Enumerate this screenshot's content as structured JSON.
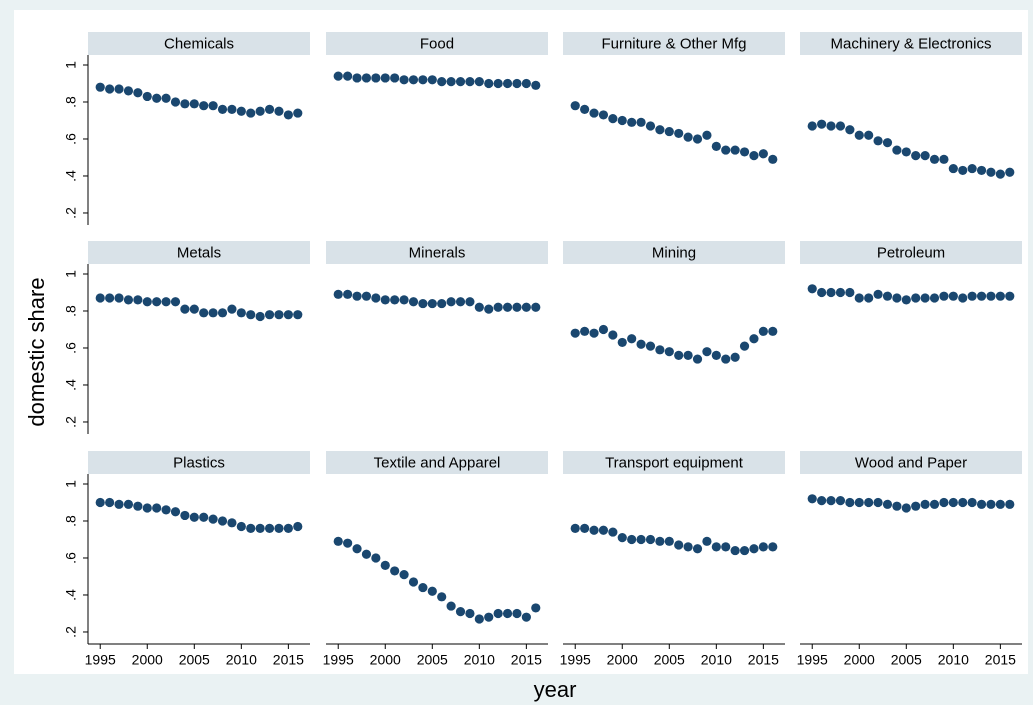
{
  "chart_data": {
    "type": "scatter",
    "x_label": "year",
    "y_label": "domestic share",
    "color": "#1a476f",
    "x": [
      1995,
      1996,
      1997,
      1998,
      1999,
      2000,
      2001,
      2002,
      2003,
      2004,
      2005,
      2006,
      2007,
      2008,
      2009,
      2010,
      2011,
      2012,
      2013,
      2014,
      2015,
      2016
    ],
    "xlim": [
      1993.7,
      2017.3
    ],
    "xticks": [
      1995,
      2000,
      2005,
      2010,
      2015
    ],
    "ylim": [
      0.135,
      1.054
    ],
    "yticks": [
      {
        "value": 0.2,
        "label": ".2"
      },
      {
        "value": 0.4,
        "label": ".4"
      },
      {
        "value": 0.6,
        "label": ".6"
      },
      {
        "value": 0.8,
        "label": ".8"
      },
      1
    ],
    "panels": [
      {
        "title": "Chemicals",
        "values": [
          0.88,
          0.87,
          0.87,
          0.86,
          0.85,
          0.83,
          0.82,
          0.82,
          0.8,
          0.79,
          0.79,
          0.78,
          0.78,
          0.76,
          0.76,
          0.75,
          0.74,
          0.75,
          0.76,
          0.75,
          0.73,
          0.74
        ]
      },
      {
        "title": "Food",
        "values": [
          0.94,
          0.94,
          0.93,
          0.93,
          0.93,
          0.93,
          0.93,
          0.92,
          0.92,
          0.92,
          0.92,
          0.91,
          0.91,
          0.91,
          0.91,
          0.91,
          0.9,
          0.9,
          0.9,
          0.9,
          0.9,
          0.89
        ]
      },
      {
        "title": "Furniture & Other Mfg",
        "values": [
          0.78,
          0.76,
          0.74,
          0.73,
          0.71,
          0.7,
          0.69,
          0.69,
          0.67,
          0.65,
          0.64,
          0.63,
          0.61,
          0.6,
          0.62,
          0.56,
          0.54,
          0.54,
          0.53,
          0.51,
          0.52,
          0.49
        ]
      },
      {
        "title": "Machinery & Electronics",
        "values": [
          0.67,
          0.68,
          0.67,
          0.67,
          0.65,
          0.62,
          0.62,
          0.59,
          0.58,
          0.54,
          0.53,
          0.51,
          0.51,
          0.49,
          0.49,
          0.44,
          0.43,
          0.44,
          0.43,
          0.42,
          0.41,
          0.42
        ]
      },
      {
        "title": "Metals",
        "values": [
          0.87,
          0.87,
          0.87,
          0.86,
          0.86,
          0.85,
          0.85,
          0.85,
          0.85,
          0.81,
          0.81,
          0.79,
          0.79,
          0.79,
          0.81,
          0.79,
          0.78,
          0.77,
          0.78,
          0.78,
          0.78,
          0.78
        ]
      },
      {
        "title": "Minerals",
        "values": [
          0.89,
          0.89,
          0.88,
          0.88,
          0.87,
          0.86,
          0.86,
          0.86,
          0.85,
          0.84,
          0.84,
          0.84,
          0.85,
          0.85,
          0.85,
          0.82,
          0.81,
          0.82,
          0.82,
          0.82,
          0.82,
          0.82
        ]
      },
      {
        "title": "Mining",
        "values": [
          0.68,
          0.69,
          0.68,
          0.7,
          0.67,
          0.63,
          0.65,
          0.62,
          0.61,
          0.59,
          0.58,
          0.56,
          0.56,
          0.54,
          0.58,
          0.56,
          0.54,
          0.55,
          0.61,
          0.65,
          0.69,
          0.69
        ]
      },
      {
        "title": "Petroleum",
        "values": [
          0.92,
          0.9,
          0.9,
          0.9,
          0.9,
          0.87,
          0.87,
          0.89,
          0.88,
          0.87,
          0.86,
          0.87,
          0.87,
          0.87,
          0.88,
          0.88,
          0.87,
          0.88,
          0.88,
          0.88,
          0.88,
          0.88
        ]
      },
      {
        "title": "Plastics",
        "values": [
          0.9,
          0.9,
          0.89,
          0.89,
          0.88,
          0.87,
          0.87,
          0.86,
          0.85,
          0.83,
          0.82,
          0.82,
          0.81,
          0.8,
          0.79,
          0.77,
          0.76,
          0.76,
          0.76,
          0.76,
          0.76,
          0.77
        ]
      },
      {
        "title": "Textile and Apparel",
        "values": [
          0.69,
          0.68,
          0.65,
          0.62,
          0.6,
          0.56,
          0.53,
          0.51,
          0.47,
          0.44,
          0.42,
          0.39,
          0.34,
          0.31,
          0.3,
          0.27,
          0.28,
          0.3,
          0.3,
          0.3,
          0.28,
          0.33
        ]
      },
      {
        "title": "Transport equipment",
        "values": [
          0.76,
          0.76,
          0.75,
          0.75,
          0.74,
          0.71,
          0.7,
          0.7,
          0.7,
          0.69,
          0.69,
          0.67,
          0.66,
          0.65,
          0.69,
          0.66,
          0.66,
          0.64,
          0.64,
          0.65,
          0.66,
          0.66
        ]
      },
      {
        "title": "Wood and Paper",
        "values": [
          0.92,
          0.91,
          0.91,
          0.91,
          0.9,
          0.9,
          0.9,
          0.9,
          0.89,
          0.88,
          0.87,
          0.88,
          0.89,
          0.89,
          0.9,
          0.9,
          0.9,
          0.9,
          0.89,
          0.89,
          0.89,
          0.89
        ]
      }
    ]
  }
}
